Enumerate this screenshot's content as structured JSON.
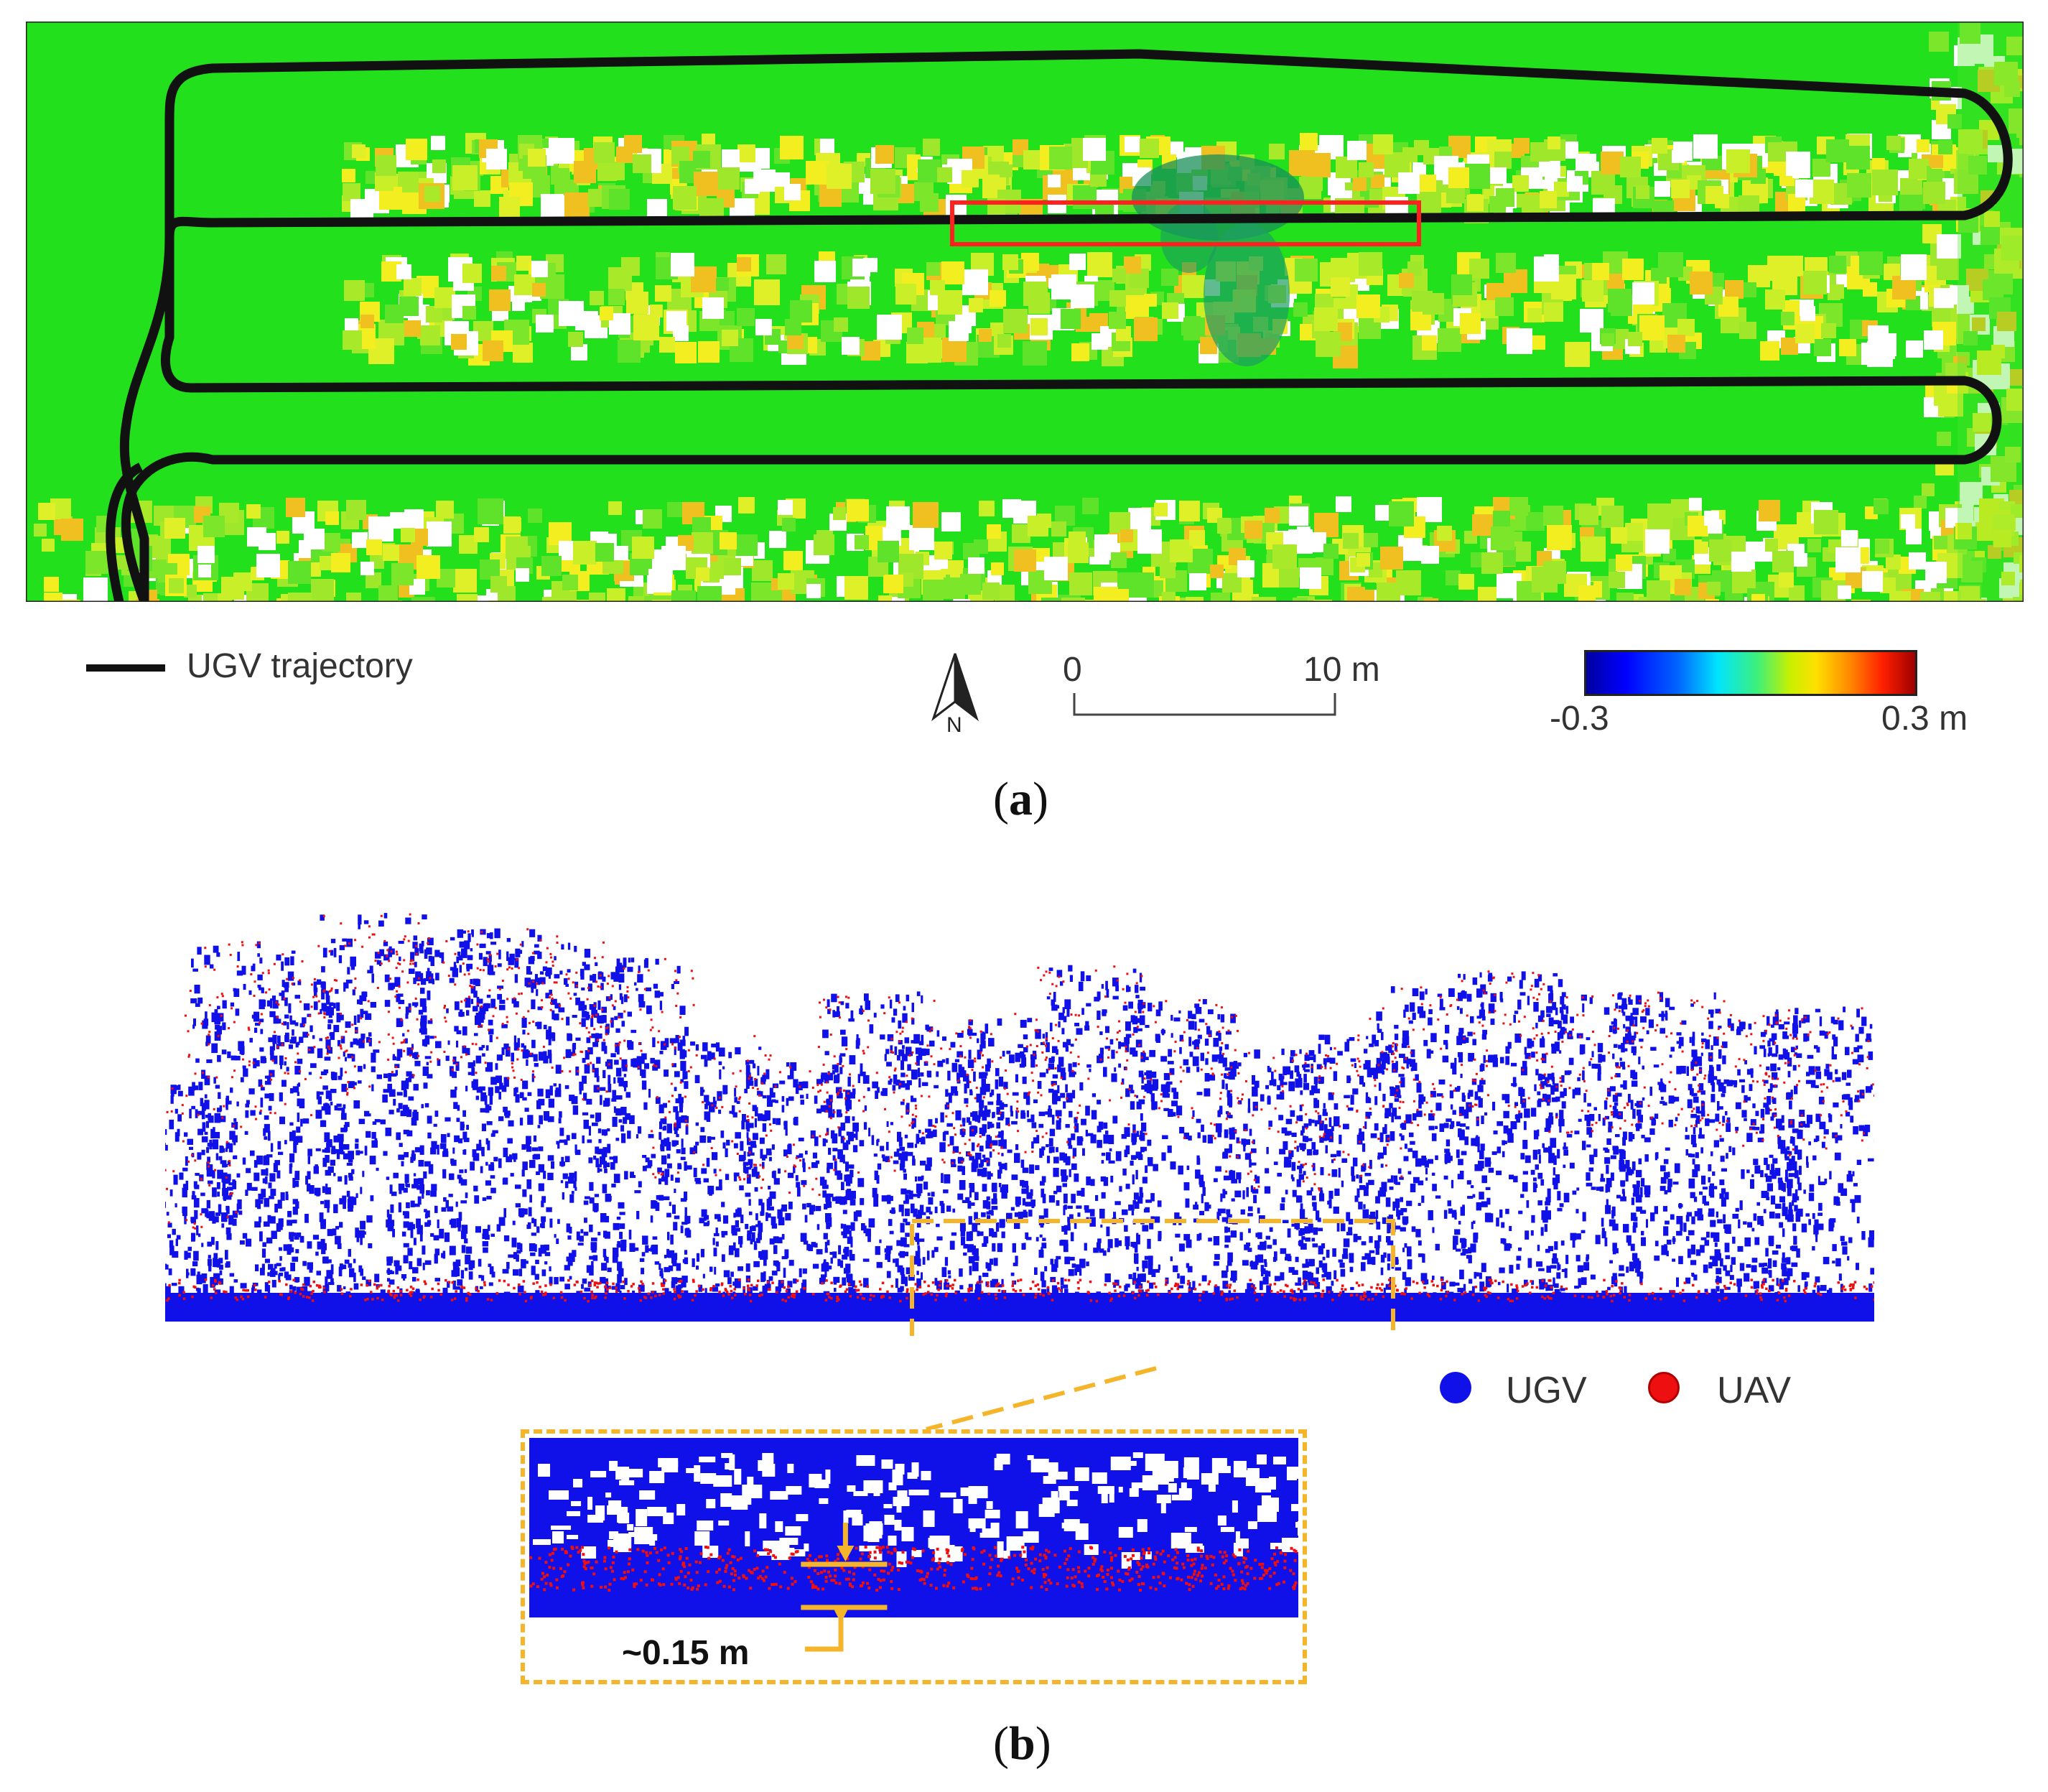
{
  "panel_a": {
    "legend_label": "UGV trajectory",
    "north_label": "N",
    "scalebar": {
      "start_label": "0",
      "end_label": "10 m"
    },
    "colorbar": {
      "min_label": "-0.3",
      "max_label": "0.3 m"
    },
    "caption_letter": "a",
    "colors": {
      "ground": "#22e01c",
      "trajectory": "#111111",
      "highlight_box": "#ff2020"
    }
  },
  "panel_b": {
    "legend": [
      {
        "label": "UGV",
        "color": "#1010e8"
      },
      {
        "label": "UAV",
        "color": "#ee1010"
      }
    ],
    "inset_label": "~0.15 m",
    "caption_letter": "b",
    "colors": {
      "zoom_box": "#f5b52a"
    }
  }
}
